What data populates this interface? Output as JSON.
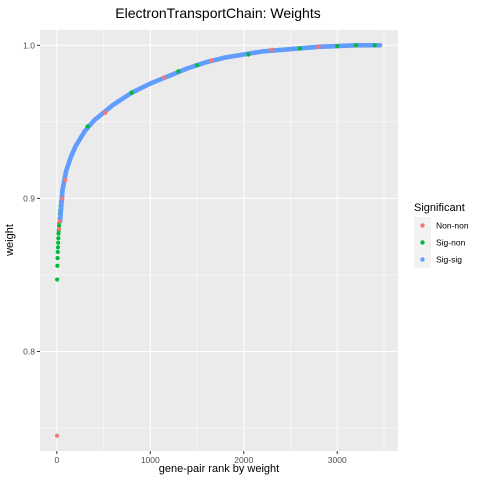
{
  "chart_data": {
    "type": "scatter",
    "title": "ElectronTransportChain: Weights",
    "xlabel": "gene-pair rank by weight",
    "ylabel": "weight",
    "xlim": [
      -180,
      3650
    ],
    "ylim": [
      0.735,
      1.01
    ],
    "x_ticks": [
      0,
      1000,
      2000,
      3000
    ],
    "y_ticks": [
      0.8,
      0.9,
      1.0
    ],
    "x_tick_labels": [
      "0",
      "1000",
      "2000",
      "3000"
    ],
    "y_tick_labels": [
      "0.8",
      "0.9",
      "1.0"
    ],
    "grid": true,
    "legend": {
      "title": "Significant",
      "placement": "right",
      "entries": [
        {
          "label": "Non-non",
          "color": "#F8766D"
        },
        {
          "label": "Sig-non",
          "color": "#00BA38"
        },
        {
          "label": "Sig-sig",
          "color": "#619CFF"
        }
      ]
    },
    "colors": {
      "panel": "#EBEBEB",
      "grid": "#FFFFFF",
      "Non-non": "#F8766D",
      "Sig-non": "#00BA38",
      "Sig-sig": "#619CFF"
    },
    "series": [
      {
        "name": "Non-non",
        "points": [
          [
            2,
            0.745
          ],
          [
            22,
            0.88
          ],
          [
            28,
            0.885
          ],
          [
            60,
            0.9
          ],
          [
            90,
            0.912
          ],
          [
            520,
            0.956
          ],
          [
            1150,
            0.979
          ],
          [
            1650,
            0.99
          ],
          [
            2300,
            0.997
          ],
          [
            2800,
            0.999
          ]
        ]
      },
      {
        "name": "Sig-non",
        "points": [
          [
            3,
            0.847
          ],
          [
            6,
            0.856
          ],
          [
            8,
            0.861
          ],
          [
            10,
            0.865
          ],
          [
            12,
            0.868
          ],
          [
            14,
            0.871
          ],
          [
            16,
            0.874
          ],
          [
            18,
            0.877
          ],
          [
            20,
            0.879
          ],
          [
            24,
            0.882
          ],
          [
            26,
            0.884
          ],
          [
            30,
            0.887
          ],
          [
            33,
            0.89
          ],
          [
            36,
            0.892
          ],
          [
            40,
            0.895
          ],
          [
            45,
            0.898
          ],
          [
            50,
            0.901
          ],
          [
            55,
            0.904
          ],
          [
            65,
            0.908
          ],
          [
            75,
            0.911
          ],
          [
            85,
            0.914
          ],
          [
            100,
            0.918
          ],
          [
            130,
            0.924
          ],
          [
            170,
            0.93
          ],
          [
            330,
            0.947
          ],
          [
            800,
            0.969
          ],
          [
            1300,
            0.983
          ],
          [
            1500,
            0.987
          ],
          [
            2050,
            0.994
          ],
          [
            2600,
            0.998
          ],
          [
            3000,
            0.9995
          ],
          [
            3200,
            1.0
          ],
          [
            3400,
            1.0
          ]
        ]
      },
      {
        "name": "Sig-sig",
        "x_range": [
          30,
          3470
        ],
        "y_range": [
          0.885,
          1.0
        ],
        "points": [
          [
            35,
            0.885
          ],
          [
            60,
            0.905
          ],
          [
            100,
            0.918
          ],
          [
            150,
            0.927
          ],
          [
            200,
            0.934
          ],
          [
            300,
            0.944
          ],
          [
            400,
            0.951
          ],
          [
            500,
            0.956
          ],
          [
            600,
            0.961
          ],
          [
            700,
            0.965
          ],
          [
            800,
            0.969
          ],
          [
            900,
            0.972
          ],
          [
            1000,
            0.975
          ],
          [
            1200,
            0.98
          ],
          [
            1400,
            0.985
          ],
          [
            1600,
            0.989
          ],
          [
            1800,
            0.992
          ],
          [
            2000,
            0.994
          ],
          [
            2200,
            0.996
          ],
          [
            2400,
            0.997
          ],
          [
            2600,
            0.998
          ],
          [
            2800,
            0.999
          ],
          [
            3000,
            0.9995
          ],
          [
            3200,
            1.0
          ],
          [
            3470,
            1.0
          ]
        ]
      }
    ]
  }
}
